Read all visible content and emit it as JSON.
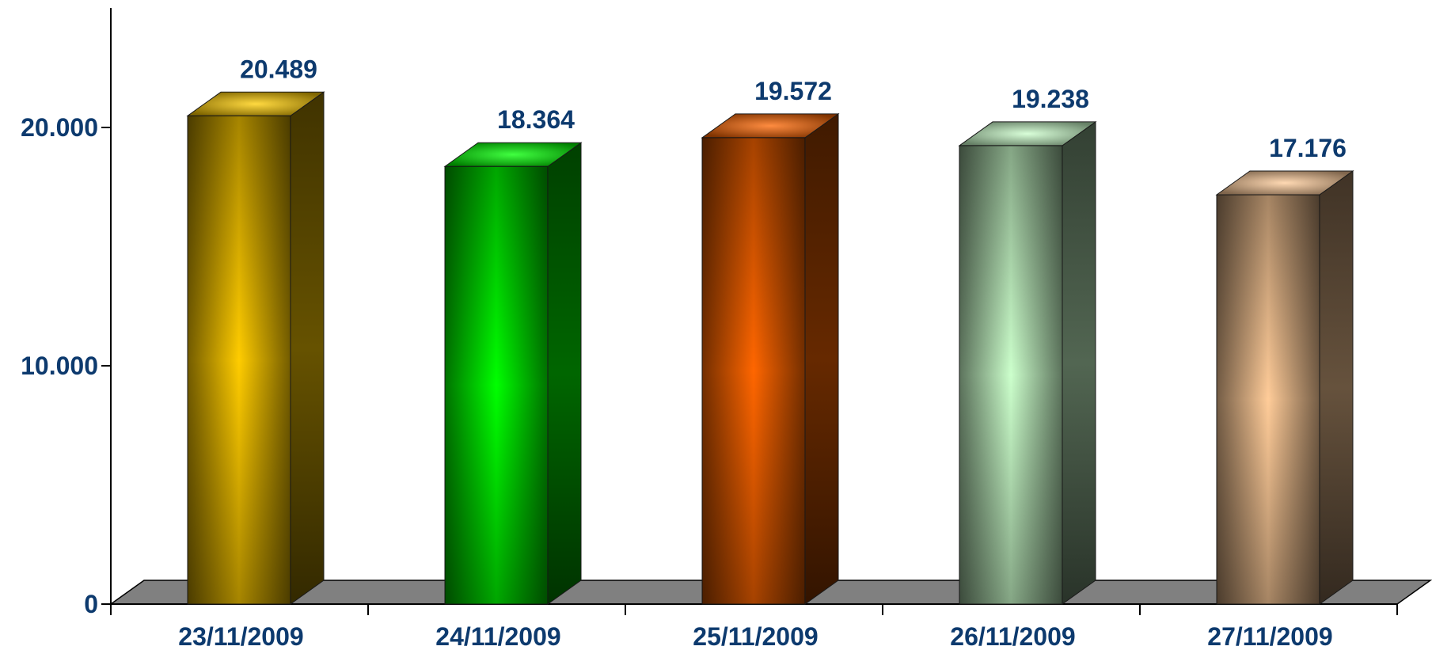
{
  "chart_data": {
    "type": "bar",
    "title": "",
    "xlabel": "",
    "ylabel": "",
    "categories": [
      "23/11/2009",
      "24/11/2009",
      "25/11/2009",
      "26/11/2009",
      "27/11/2009"
    ],
    "values": [
      20489,
      18364,
      19572,
      19238,
      17176
    ],
    "data_labels": [
      "20.489",
      "18.364",
      "19.572",
      "19.238",
      "17.176"
    ],
    "y_ticks": [
      {
        "value": 0,
        "label": "0"
      },
      {
        "value": 10000,
        "label": "10.000"
      },
      {
        "value": 20000,
        "label": "20.000"
      }
    ],
    "ylim": [
      0,
      25000
    ],
    "grid": false,
    "legend": "none",
    "style": "3d",
    "colors": [
      "#ffcc00",
      "#00ff00",
      "#ff6600",
      "#ccffcc",
      "#ffcc99"
    ],
    "label_color": "#0d3a6e"
  }
}
